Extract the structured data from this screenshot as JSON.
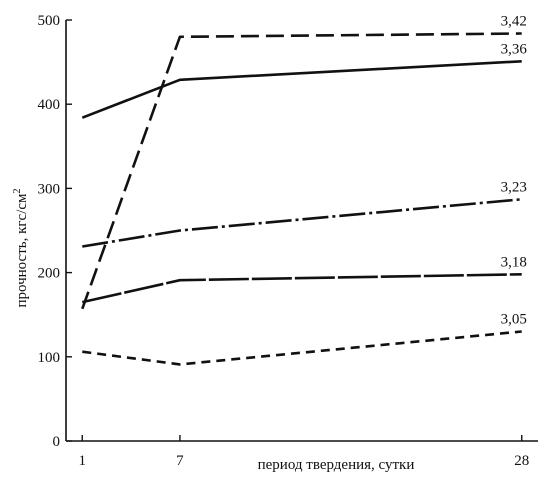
{
  "chart_data": {
    "type": "line",
    "xlabel": "период твердения, сутки",
    "ylabel": "прочность, кгс/см",
    "ylabel_superscript": "2",
    "x_ticks": [
      1,
      7,
      28
    ],
    "y_ticks": [
      0,
      100,
      200,
      300,
      400,
      500
    ],
    "xlim": [
      0,
      29
    ],
    "ylim": [
      0,
      500
    ],
    "grid": false,
    "series": [
      {
        "name": "3,42",
        "style": "long-dash",
        "color": "#111111",
        "x": [
          1,
          7,
          28
        ],
        "y": [
          157,
          480,
          484
        ]
      },
      {
        "name": "3,36",
        "style": "solid",
        "color": "#111111",
        "x": [
          1,
          7,
          28
        ],
        "y": [
          384,
          429,
          451
        ]
      },
      {
        "name": "3,23",
        "style": "dash-dot",
        "color": "#111111",
        "x": [
          1,
          7,
          28
        ],
        "y": [
          231,
          250,
          287
        ]
      },
      {
        "name": "3,18",
        "style": "solid-gaps",
        "color": "#111111",
        "x": [
          1,
          7,
          28
        ],
        "y": [
          165,
          191,
          198
        ]
      },
      {
        "name": "3,05",
        "style": "short-dash",
        "color": "#111111",
        "x": [
          1,
          7,
          28
        ],
        "y": [
          106,
          91,
          130
        ]
      }
    ]
  }
}
